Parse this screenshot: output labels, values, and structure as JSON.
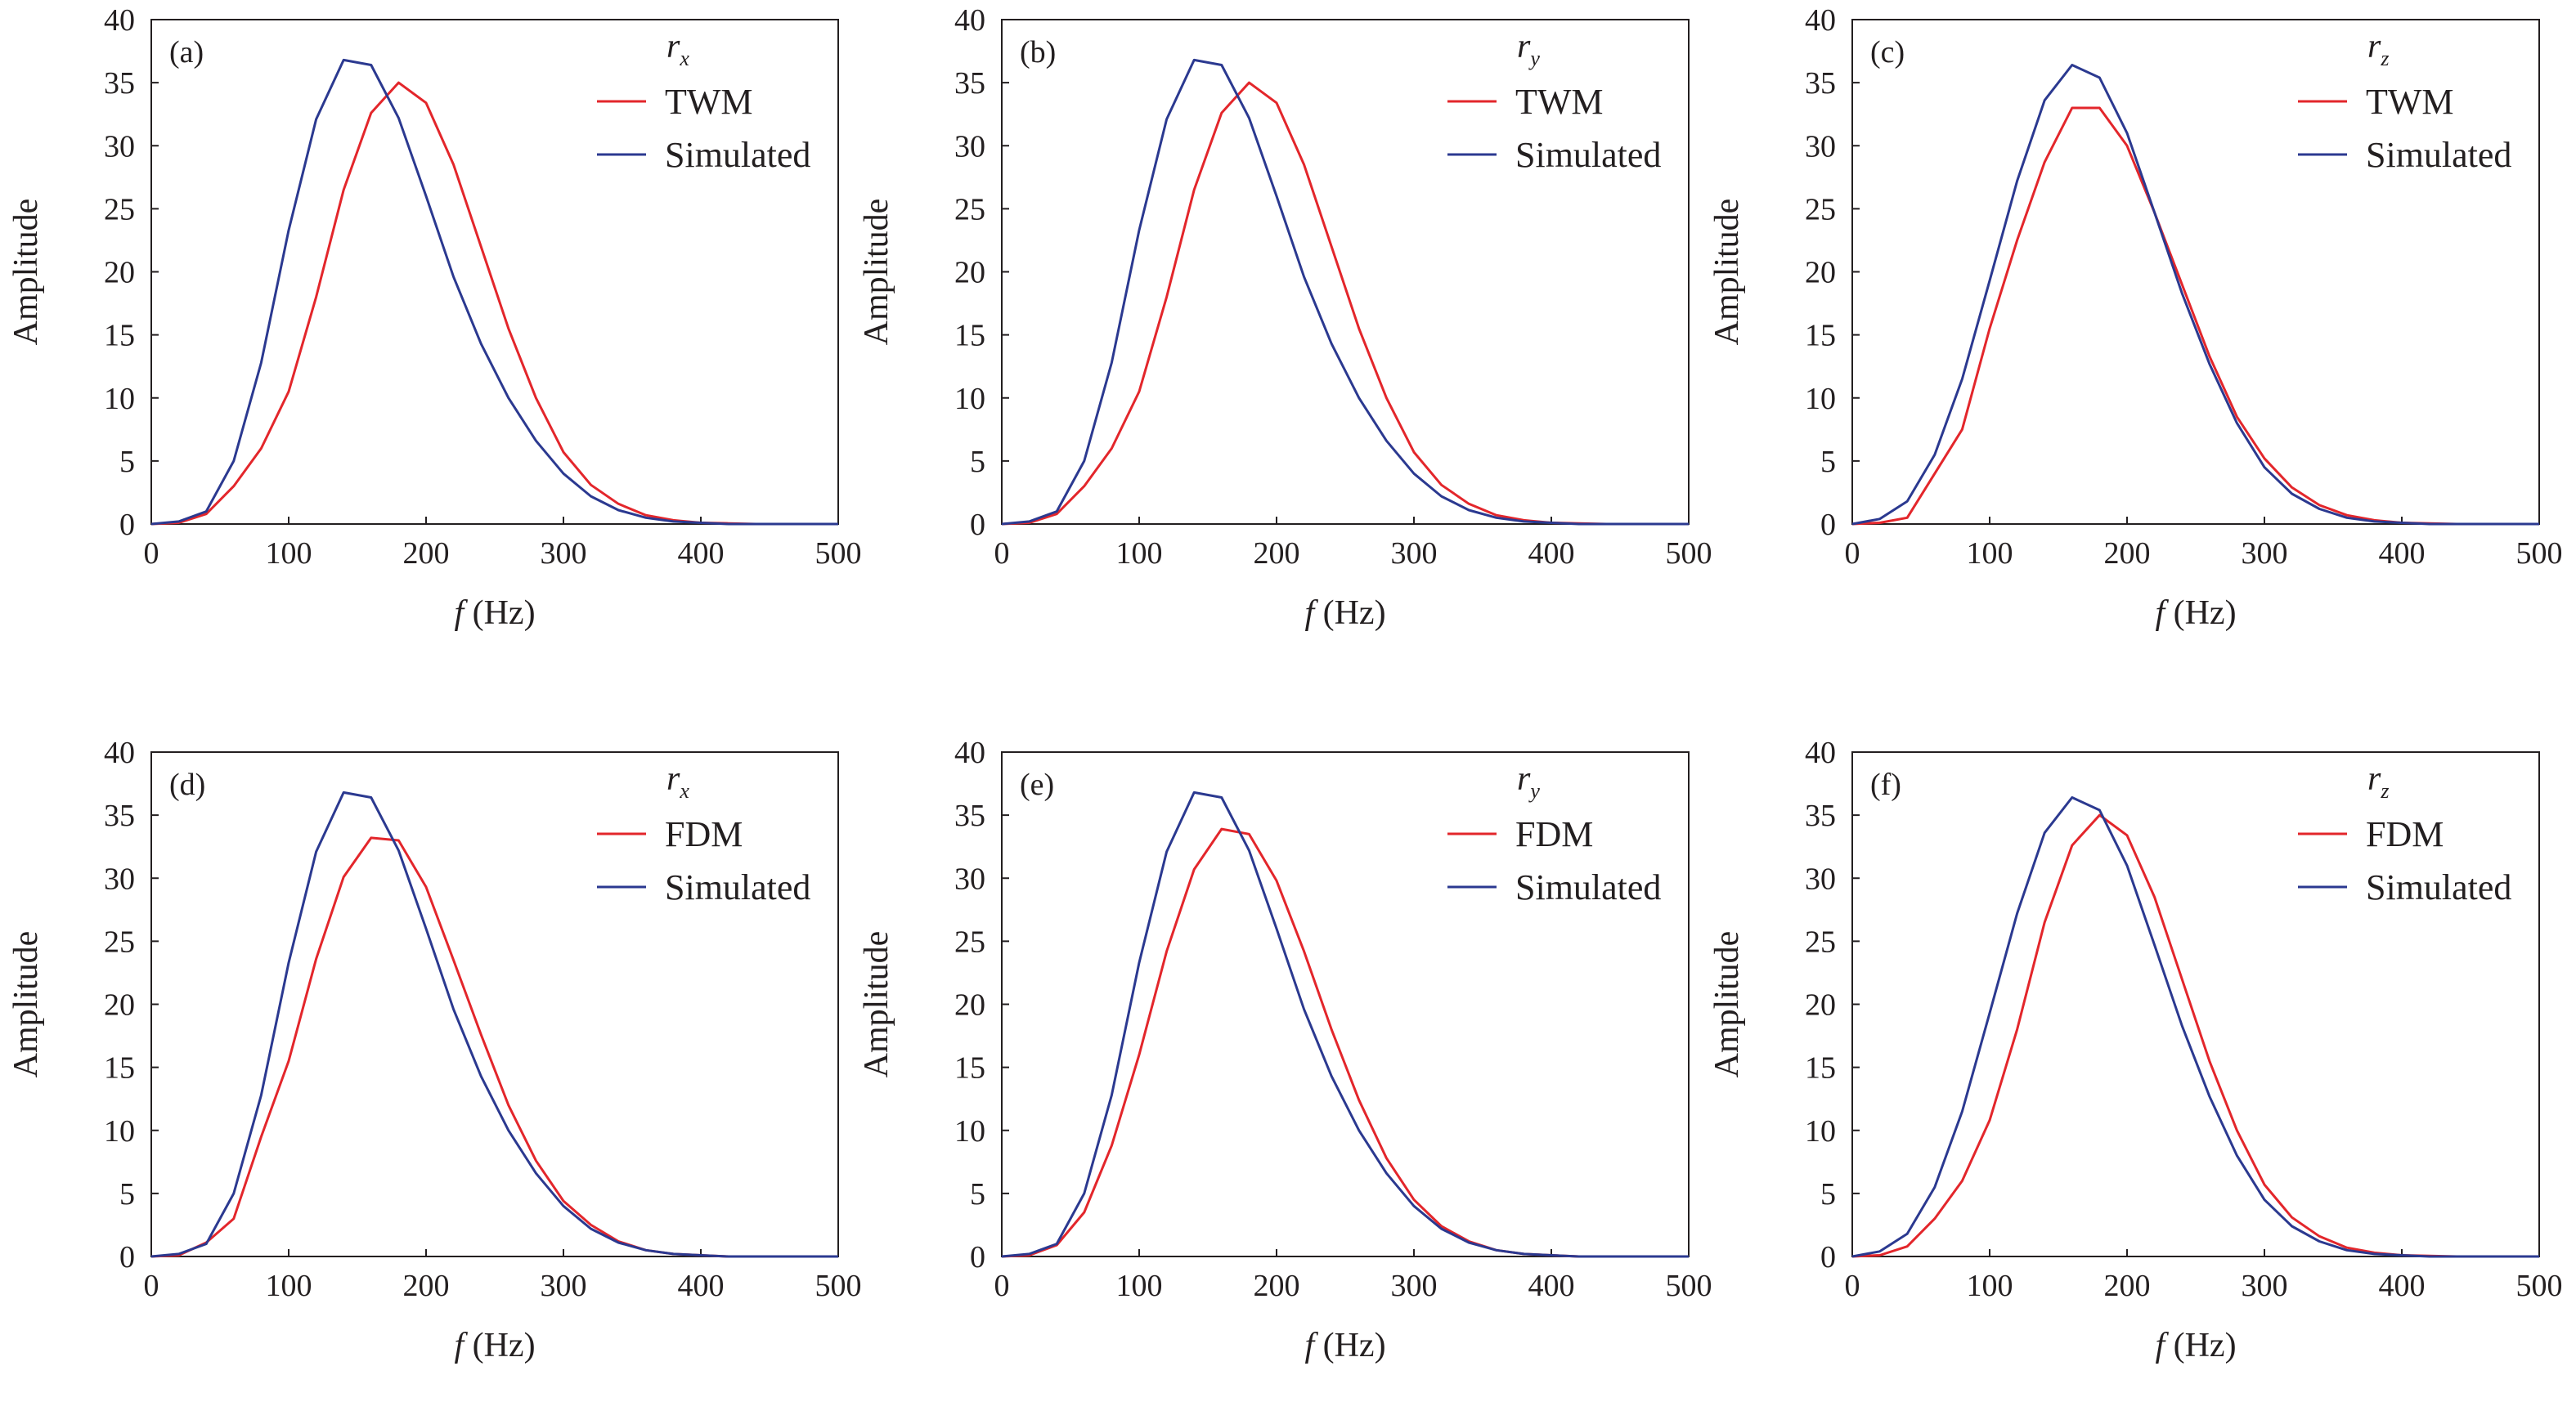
{
  "x_axis_title": {
    "var": "f",
    "unit": " (Hz)"
  },
  "y_axis_title": "Amplitude",
  "chart_data": [
    {
      "type": "line",
      "panel": "(a)",
      "component": {
        "base": "r",
        "sub": "x"
      },
      "xlim": [
        0,
        500
      ],
      "ylim": [
        0,
        40
      ],
      "x_ticks": [
        0,
        100,
        200,
        300,
        400,
        500
      ],
      "y_ticks": [
        0,
        5,
        10,
        15,
        20,
        25,
        30,
        35,
        40
      ],
      "legend_position": "top-right",
      "grid": false,
      "series": [
        {
          "name": "TWM",
          "color": "#e3262b",
          "x": [
            0,
            20,
            40,
            60,
            80,
            100,
            120,
            140,
            160,
            180,
            200,
            220,
            240,
            260,
            280,
            300,
            320,
            340,
            360,
            380,
            400,
            420,
            440,
            460,
            480,
            500
          ],
          "y": [
            0,
            0.1,
            0.8,
            3,
            6,
            10.5,
            18,
            26.5,
            32.6,
            35,
            33.4,
            28.5,
            22,
            15.5,
            10,
            5.7,
            3.1,
            1.6,
            0.7,
            0.3,
            0.1,
            0.05,
            0,
            0,
            0,
            0
          ]
        },
        {
          "name": "Simulated",
          "color": "#2b3990",
          "x": [
            0,
            20,
            40,
            60,
            80,
            100,
            120,
            140,
            160,
            180,
            200,
            220,
            240,
            260,
            280,
            300,
            320,
            340,
            360,
            380,
            400,
            420,
            440,
            460,
            480,
            500
          ],
          "y": [
            0,
            0.2,
            1,
            5,
            12.8,
            23.3,
            32.1,
            36.8,
            36.4,
            32.2,
            26,
            19.6,
            14.3,
            10,
            6.6,
            4,
            2.2,
            1.1,
            0.5,
            0.2,
            0.1,
            0,
            0,
            0,
            0,
            0
          ]
        }
      ]
    },
    {
      "type": "line",
      "panel": "(b)",
      "component": {
        "base": "r",
        "sub": "y"
      },
      "xlim": [
        0,
        500
      ],
      "ylim": [
        0,
        40
      ],
      "x_ticks": [
        0,
        100,
        200,
        300,
        400,
        500
      ],
      "y_ticks": [
        0,
        5,
        10,
        15,
        20,
        25,
        30,
        35,
        40
      ],
      "legend_position": "top-right",
      "grid": false,
      "series": [
        {
          "name": "TWM",
          "color": "#e3262b",
          "x": [
            0,
            20,
            40,
            60,
            80,
            100,
            120,
            140,
            160,
            180,
            200,
            220,
            240,
            260,
            280,
            300,
            320,
            340,
            360,
            380,
            400,
            420,
            440,
            460,
            480,
            500
          ],
          "y": [
            0,
            0.1,
            0.8,
            3,
            6,
            10.5,
            18,
            26.5,
            32.6,
            35,
            33.4,
            28.5,
            22,
            15.5,
            10,
            5.7,
            3.1,
            1.6,
            0.7,
            0.3,
            0.1,
            0.05,
            0,
            0,
            0,
            0
          ]
        },
        {
          "name": "Simulated",
          "color": "#2b3990",
          "x": [
            0,
            20,
            40,
            60,
            80,
            100,
            120,
            140,
            160,
            180,
            200,
            220,
            240,
            260,
            280,
            300,
            320,
            340,
            360,
            380,
            400,
            420,
            440,
            460,
            480,
            500
          ],
          "y": [
            0,
            0.2,
            1,
            5,
            12.8,
            23.3,
            32.1,
            36.8,
            36.4,
            32.2,
            26,
            19.6,
            14.3,
            10,
            6.6,
            4,
            2.2,
            1.1,
            0.5,
            0.2,
            0.1,
            0,
            0,
            0,
            0,
            0
          ]
        }
      ]
    },
    {
      "type": "line",
      "panel": "(c)",
      "component": {
        "base": "r",
        "sub": "z"
      },
      "xlim": [
        0,
        500
      ],
      "ylim": [
        0,
        40
      ],
      "x_ticks": [
        0,
        100,
        200,
        300,
        400,
        500
      ],
      "y_ticks": [
        0,
        5,
        10,
        15,
        20,
        25,
        30,
        35,
        40
      ],
      "legend_position": "top-right",
      "grid": false,
      "series": [
        {
          "name": "TWM",
          "color": "#e3262b",
          "x": [
            0,
            20,
            40,
            60,
            80,
            100,
            120,
            140,
            160,
            180,
            200,
            220,
            240,
            260,
            280,
            300,
            320,
            340,
            360,
            380,
            400,
            420,
            440,
            460,
            480,
            500
          ],
          "y": [
            0,
            0.1,
            0.5,
            4,
            7.5,
            15.5,
            22.5,
            28.7,
            33,
            33,
            30,
            24.7,
            19,
            13.3,
            8.5,
            5.2,
            2.9,
            1.5,
            0.7,
            0.3,
            0.1,
            0.05,
            0,
            0,
            0,
            0
          ]
        },
        {
          "name": "Simulated",
          "color": "#2b3990",
          "x": [
            0,
            20,
            40,
            60,
            80,
            100,
            120,
            140,
            160,
            180,
            200,
            220,
            240,
            260,
            280,
            300,
            320,
            340,
            360,
            380,
            400,
            420,
            440,
            460,
            480,
            500
          ],
          "y": [
            0,
            0.4,
            1.8,
            5.5,
            11.5,
            19.3,
            27.2,
            33.6,
            36.4,
            35.4,
            31,
            24.7,
            18.3,
            12.7,
            8,
            4.5,
            2.4,
            1.2,
            0.5,
            0.2,
            0.1,
            0,
            0,
            0,
            0,
            0
          ]
        }
      ]
    },
    {
      "type": "line",
      "panel": "(d)",
      "component": {
        "base": "r",
        "sub": "x"
      },
      "xlim": [
        0,
        500
      ],
      "ylim": [
        0,
        40
      ],
      "x_ticks": [
        0,
        100,
        200,
        300,
        400,
        500
      ],
      "y_ticks": [
        0,
        5,
        10,
        15,
        20,
        25,
        30,
        35,
        40
      ],
      "legend_position": "top-right",
      "grid": false,
      "series": [
        {
          "name": "FDM",
          "color": "#e3262b",
          "x": [
            0,
            20,
            40,
            60,
            80,
            100,
            120,
            140,
            160,
            180,
            200,
            220,
            240,
            260,
            280,
            300,
            320,
            340,
            360,
            380,
            400,
            420,
            440,
            460,
            480,
            500
          ],
          "y": [
            0,
            0.1,
            1.1,
            3,
            9.5,
            15.5,
            23.6,
            30.1,
            33.2,
            33,
            29.3,
            23.5,
            17.6,
            12,
            7.6,
            4.4,
            2.5,
            1.2,
            0.5,
            0.2,
            0.1,
            0,
            0,
            0,
            0,
            0
          ]
        },
        {
          "name": "Simulated",
          "color": "#2b3990",
          "x": [
            0,
            20,
            40,
            60,
            80,
            100,
            120,
            140,
            160,
            180,
            200,
            220,
            240,
            260,
            280,
            300,
            320,
            340,
            360,
            380,
            400,
            420,
            440,
            460,
            480,
            500
          ],
          "y": [
            0,
            0.2,
            1,
            5,
            12.8,
            23.3,
            32.1,
            36.8,
            36.4,
            32.2,
            26,
            19.6,
            14.3,
            10,
            6.6,
            4,
            2.2,
            1.1,
            0.5,
            0.2,
            0.1,
            0,
            0,
            0,
            0,
            0
          ]
        }
      ]
    },
    {
      "type": "line",
      "panel": "(e)",
      "component": {
        "base": "r",
        "sub": "y"
      },
      "xlim": [
        0,
        500
      ],
      "ylim": [
        0,
        40
      ],
      "x_ticks": [
        0,
        100,
        200,
        300,
        400,
        500
      ],
      "y_ticks": [
        0,
        5,
        10,
        15,
        20,
        25,
        30,
        35,
        40
      ],
      "legend_position": "top-right",
      "grid": false,
      "series": [
        {
          "name": "FDM",
          "color": "#e3262b",
          "x": [
            0,
            20,
            40,
            60,
            80,
            100,
            120,
            140,
            160,
            180,
            200,
            220,
            240,
            260,
            280,
            300,
            320,
            340,
            360,
            380,
            400,
            420,
            440,
            460,
            480,
            500
          ],
          "y": [
            0,
            0.1,
            0.9,
            3.5,
            8.8,
            16,
            24.2,
            30.7,
            33.9,
            33.5,
            29.8,
            24.2,
            18,
            12.4,
            7.8,
            4.5,
            2.4,
            1.2,
            0.5,
            0.2,
            0.1,
            0,
            0,
            0,
            0,
            0
          ]
        },
        {
          "name": "Simulated",
          "color": "#2b3990",
          "x": [
            0,
            20,
            40,
            60,
            80,
            100,
            120,
            140,
            160,
            180,
            200,
            220,
            240,
            260,
            280,
            300,
            320,
            340,
            360,
            380,
            400,
            420,
            440,
            460,
            480,
            500
          ],
          "y": [
            0,
            0.2,
            1,
            5,
            12.8,
            23.3,
            32.1,
            36.8,
            36.4,
            32.2,
            26,
            19.6,
            14.3,
            10,
            6.6,
            4,
            2.2,
            1.1,
            0.5,
            0.2,
            0.1,
            0,
            0,
            0,
            0,
            0
          ]
        }
      ]
    },
    {
      "type": "line",
      "panel": "(f)",
      "component": {
        "base": "r",
        "sub": "z"
      },
      "xlim": [
        0,
        500
      ],
      "ylim": [
        0,
        40
      ],
      "x_ticks": [
        0,
        100,
        200,
        300,
        400,
        500
      ],
      "y_ticks": [
        0,
        5,
        10,
        15,
        20,
        25,
        30,
        35,
        40
      ],
      "legend_position": "top-right",
      "grid": false,
      "series": [
        {
          "name": "FDM",
          "color": "#e3262b",
          "x": [
            0,
            20,
            40,
            60,
            80,
            100,
            120,
            140,
            160,
            180,
            200,
            220,
            240,
            260,
            280,
            300,
            320,
            340,
            360,
            380,
            400,
            420,
            440,
            460,
            480,
            500
          ],
          "y": [
            0,
            0.1,
            0.8,
            3,
            6,
            10.8,
            18,
            26.5,
            32.6,
            35,
            33.4,
            28.5,
            22,
            15.5,
            10,
            5.7,
            3.1,
            1.6,
            0.7,
            0.3,
            0.1,
            0.05,
            0,
            0,
            0,
            0
          ]
        },
        {
          "name": "Simulated",
          "color": "#2b3990",
          "x": [
            0,
            20,
            40,
            60,
            80,
            100,
            120,
            140,
            160,
            180,
            200,
            220,
            240,
            260,
            280,
            300,
            320,
            340,
            360,
            380,
            400,
            420,
            440,
            460,
            480,
            500
          ],
          "y": [
            0,
            0.4,
            1.8,
            5.5,
            11.5,
            19.3,
            27.2,
            33.6,
            36.4,
            35.4,
            31,
            24.7,
            18.3,
            12.7,
            8,
            4.5,
            2.4,
            1.2,
            0.5,
            0.2,
            0.1,
            0,
            0,
            0,
            0,
            0
          ]
        }
      ]
    }
  ]
}
